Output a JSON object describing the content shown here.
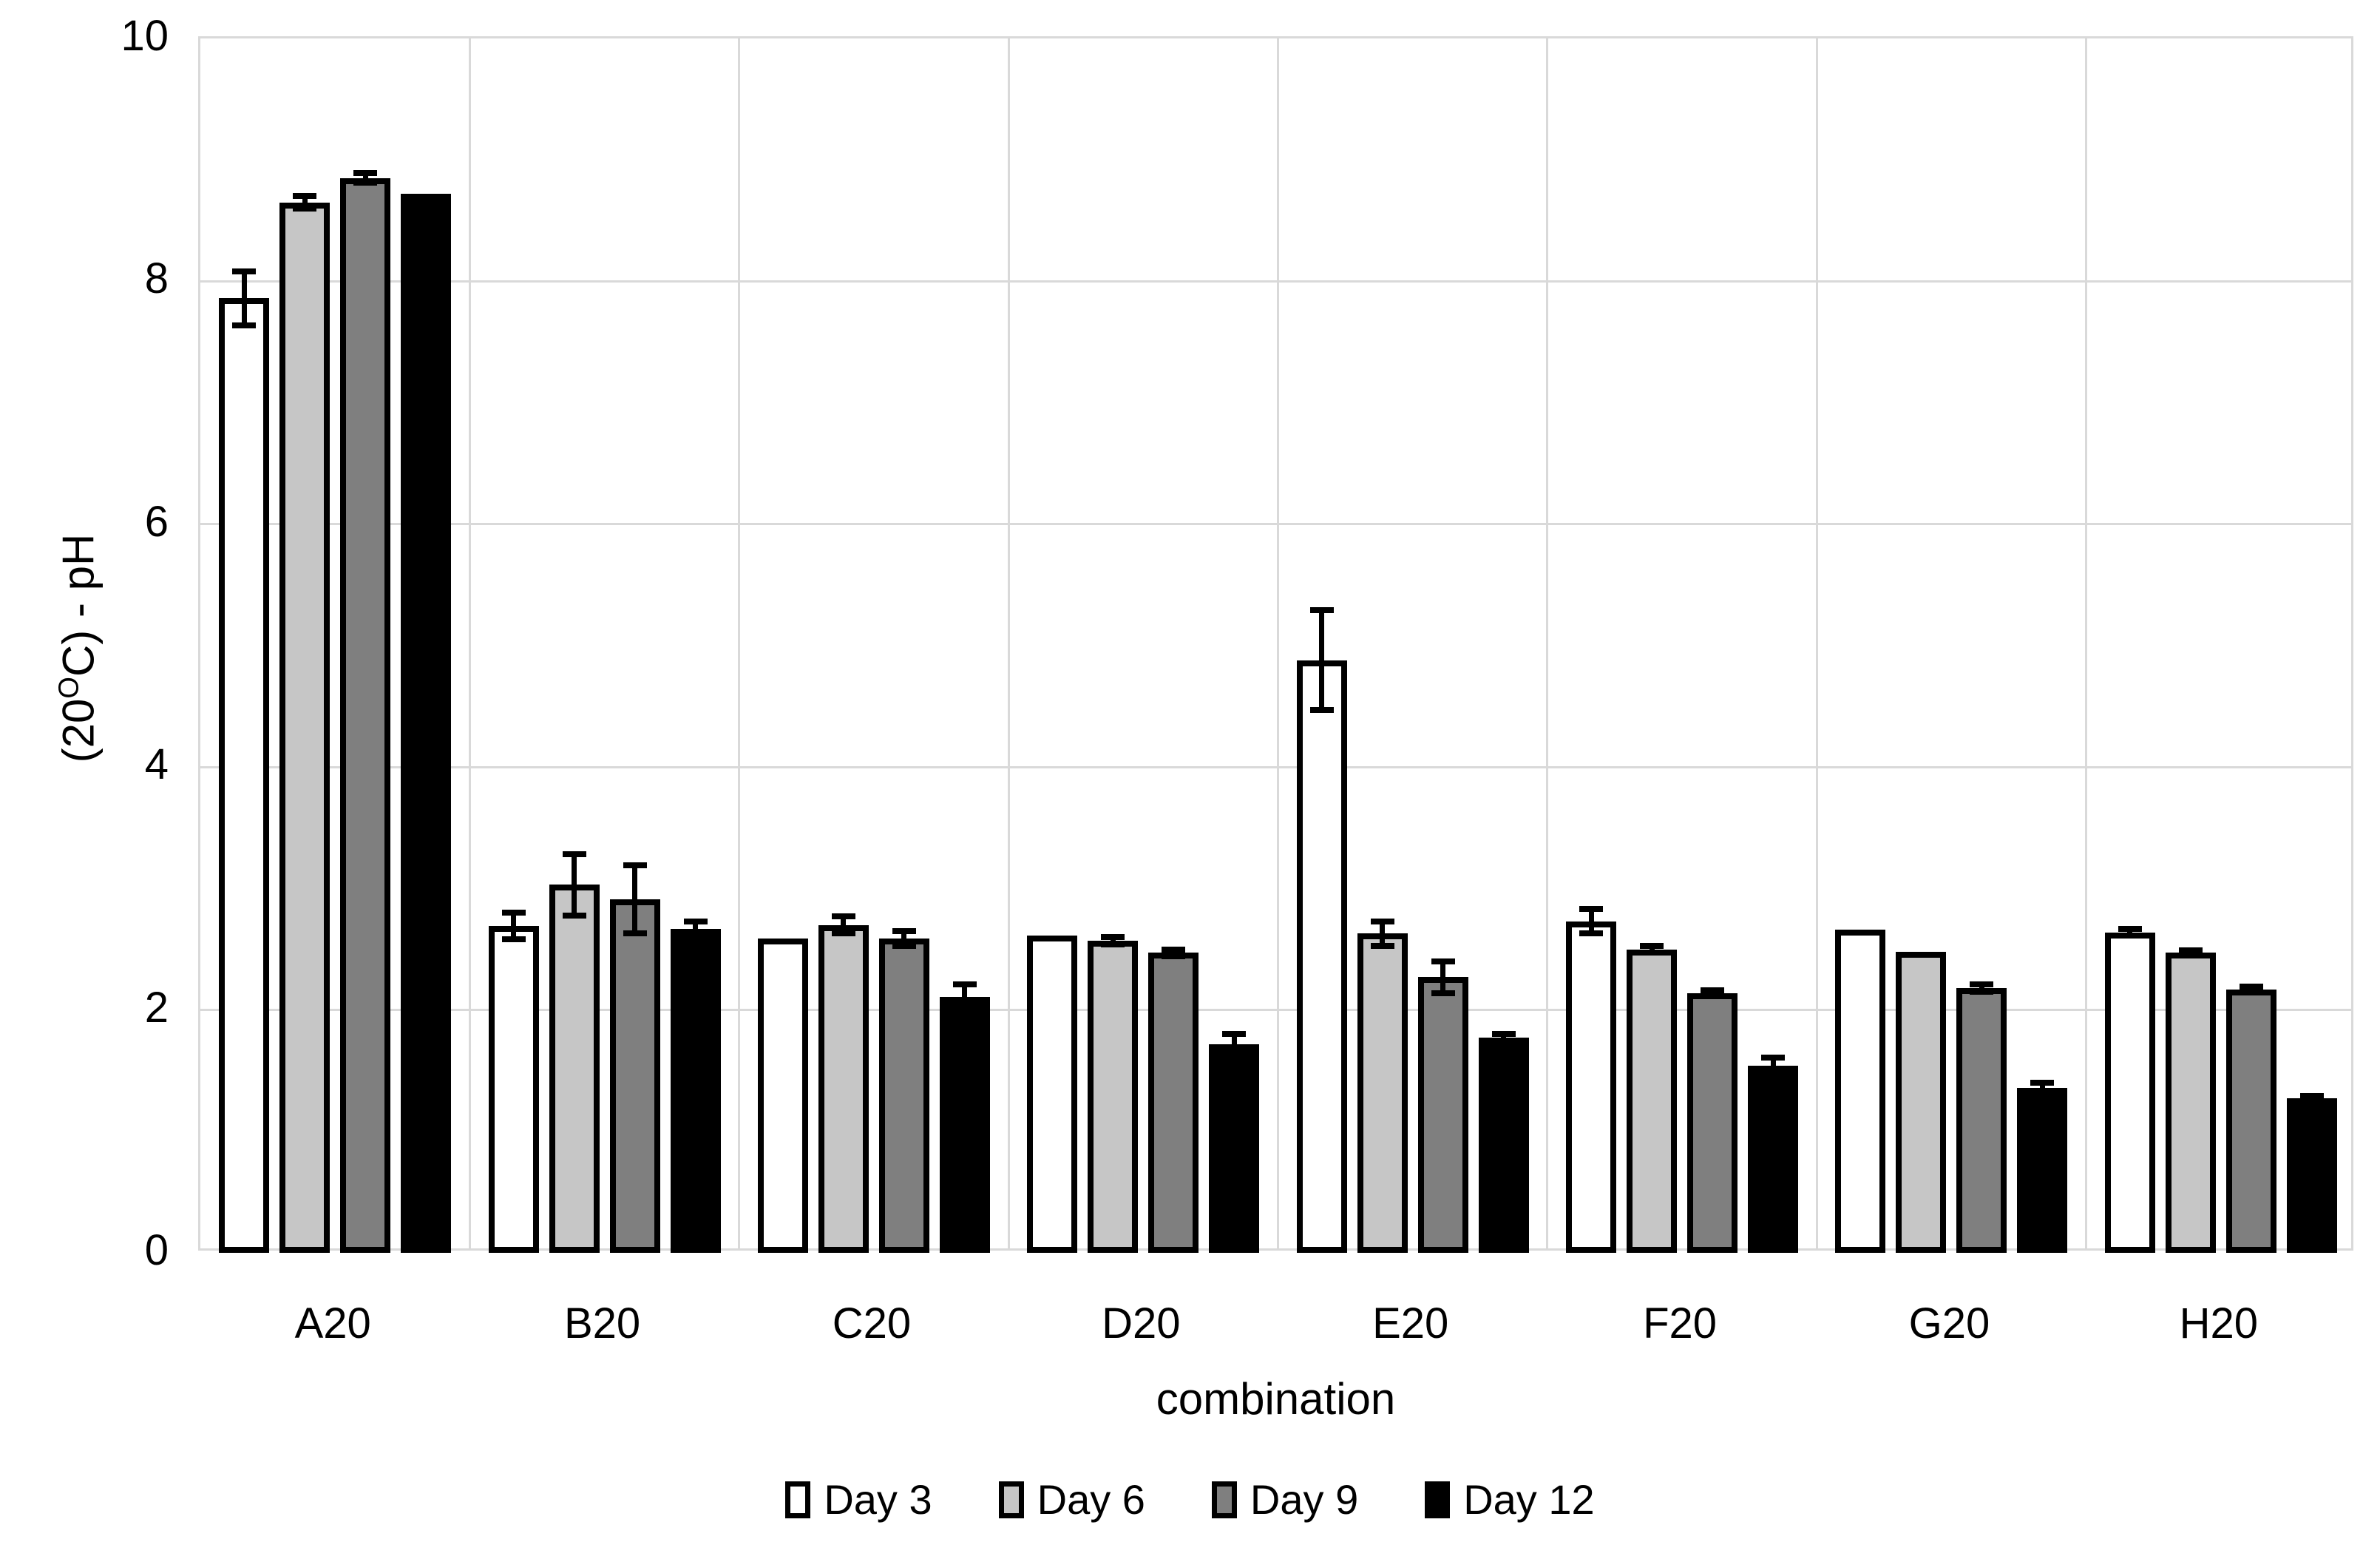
{
  "y_axis": {
    "title_prefix": "(20",
    "title_sup": "O",
    "title_suffix": "C) - pH",
    "ticks": [
      0,
      2,
      4,
      6,
      8,
      10
    ],
    "min": 0,
    "max": 10
  },
  "x_axis": {
    "title": "combination"
  },
  "colors": {
    "grid": "#d9d9d9",
    "bar_border": "#000000",
    "day3_fill": "#ffffff",
    "day6_fill": "#c6c6c6",
    "day9_fill": "#7f7f7f",
    "day12_fill": "#000000"
  },
  "legend": [
    {
      "label": "Day 3",
      "fill": "#ffffff"
    },
    {
      "label": "Day 6",
      "fill": "#c6c6c6"
    },
    {
      "label": "Day 9",
      "fill": "#7f7f7f"
    },
    {
      "label": "Day 12",
      "fill": "#000000"
    }
  ],
  "chart_data": {
    "type": "bar",
    "title": "",
    "xlabel": "combination",
    "ylabel": "(20C) - pH",
    "ylim": [
      0,
      10
    ],
    "grid": "on",
    "legend_position": "bottom",
    "categories": [
      "A20",
      "B20",
      "C20",
      "D20",
      "E20",
      "F20",
      "G20",
      "H20"
    ],
    "series": [
      {
        "name": "Day 3",
        "fill": "#ffffff",
        "values": [
          7.86,
          2.69,
          2.59,
          2.61,
          4.88,
          2.73,
          2.66,
          2.64
        ],
        "errors": [
          0.22,
          0.11,
          0.0,
          0.0,
          0.41,
          0.1,
          0.0,
          0.03
        ]
      },
      {
        "name": "Day 6",
        "fill": "#c6c6c6",
        "values": [
          8.65,
          3.03,
          2.7,
          2.57,
          2.63,
          2.5,
          2.48,
          2.47
        ],
        "errors": [
          0.05,
          0.25,
          0.07,
          0.03,
          0.1,
          0.03,
          0.0,
          0.02
        ]
      },
      {
        "name": "Day 9",
        "fill": "#7f7f7f",
        "values": [
          8.85,
          2.91,
          2.59,
          2.47,
          2.27,
          2.14,
          2.18,
          2.17
        ],
        "errors": [
          0.04,
          0.28,
          0.06,
          0.03,
          0.13,
          0.02,
          0.03,
          0.02
        ]
      },
      {
        "name": "Day 12",
        "fill": "#000000",
        "values": [
          8.72,
          2.67,
          2.11,
          1.72,
          1.77,
          1.54,
          1.36,
          1.27
        ],
        "errors": [
          0.0,
          0.06,
          0.1,
          0.08,
          0.03,
          0.07,
          0.04,
          0.02
        ]
      }
    ]
  }
}
